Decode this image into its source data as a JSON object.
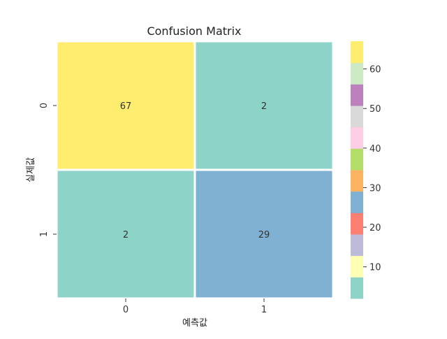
{
  "chart_data": {
    "type": "heatmap",
    "title": "Confusion Matrix",
    "xlabel": "예측값",
    "ylabel": "실제값",
    "x_categories": [
      "0",
      "1"
    ],
    "y_categories": [
      "0",
      "1"
    ],
    "values": [
      [
        67,
        2
      ],
      [
        2,
        29
      ]
    ],
    "cell_labels": [
      [
        "67",
        "2"
      ],
      [
        "2",
        "29"
      ]
    ],
    "colormap": "Set3",
    "vmin": 2,
    "vmax": 67,
    "colorbar": {
      "ticks": [
        10,
        20,
        30,
        40,
        50,
        60
      ],
      "tick_labels": [
        "10",
        "20",
        "30",
        "40",
        "50",
        "60"
      ],
      "colors": [
        "#8dd3c7",
        "#ffffb3",
        "#bebada",
        "#fb8072",
        "#80b1d3",
        "#fdb462",
        "#b3de69",
        "#fccde5",
        "#d9d9d9",
        "#bc80bd",
        "#ccebc5",
        "#ffed6f"
      ]
    },
    "grid": false
  }
}
